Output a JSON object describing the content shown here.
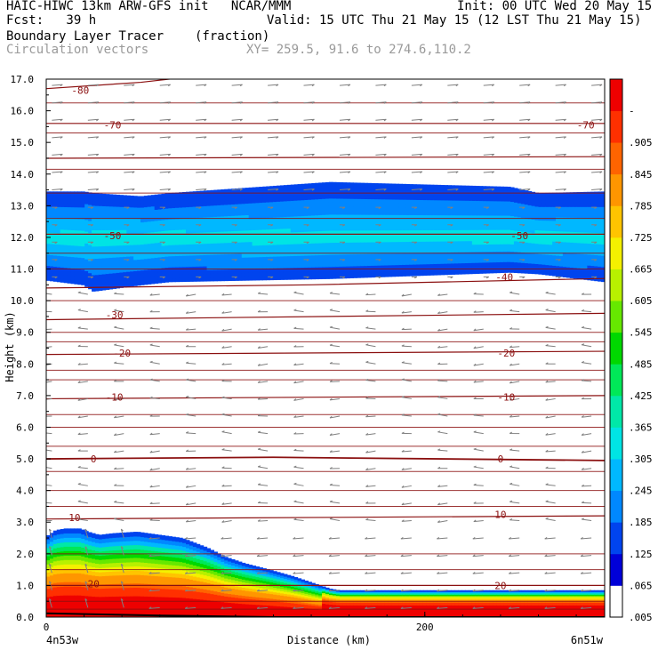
{
  "header": {
    "left_line1": "HAIC-HIWC 13km ARW-GFS init   NCAR/MMM",
    "left_line2": "Fcst:   39 h",
    "field_name": "Boundary Layer Tracer",
    "field_units": "(fraction)",
    "overlay_name": "Circulation vectors",
    "xy_text": "XY= 259.5, 91.6 to 274.6,110.2",
    "init_text": "Init: 00 UTC Wed 20 May 15",
    "valid_text": "Valid: 15 UTC Thu 21 May 15 (12 LST Thu 21 May 15)"
  },
  "chart_data": {
    "type": "heatmap",
    "title": "Boundary Layer Tracer",
    "xlabel": "Distance (km)",
    "ylabel": "Height (km)",
    "xlim": [
      0,
      295
    ],
    "ylim": [
      0,
      17
    ],
    "x_ticks": [
      0,
      200
    ],
    "x_tick_labels": [
      "0",
      "200"
    ],
    "y_ticks": [
      0,
      1,
      2,
      3,
      4,
      5,
      6,
      7,
      8,
      9,
      10,
      11,
      12,
      13,
      14,
      15,
      16,
      17
    ],
    "y_tick_labels": [
      "0.0",
      "1.0",
      "2.0",
      "3.0",
      "4.0",
      "5.0",
      "6.0",
      "7.0",
      "8.0",
      "9.0",
      "10.0",
      "11.0",
      "12.0",
      "13.0",
      "14.0",
      "15.0",
      "16.0",
      "17.0"
    ],
    "endpoint_labels": {
      "left": "4n53w",
      "right": "6n51w"
    },
    "colorbar": {
      "labels": [
        ".905",
        ".845",
        ".785",
        ".725",
        ".665",
        ".605",
        ".545",
        ".485",
        ".425",
        ".365",
        ".305",
        ".245",
        ".185",
        ".125",
        ".065",
        ".005"
      ],
      "top_label": "-",
      "colors": [
        "#ffffff",
        "#0000d8",
        "#0044ee",
        "#0088ff",
        "#00b8ff",
        "#00e4e4",
        "#00e8a8",
        "#00e858",
        "#00d800",
        "#66e800",
        "#b8f000",
        "#f4f000",
        "#ffc400",
        "#ff9600",
        "#ff6400",
        "#ff3000",
        "#ee0000"
      ]
    },
    "upper_layer": {
      "x": [
        0,
        20,
        25,
        50,
        65,
        150,
        245,
        260,
        295
      ],
      "bottom_km": [
        10.65,
        10.5,
        10.3,
        10.5,
        10.6,
        10.7,
        10.9,
        10.85,
        10.6
      ],
      "top_km": [
        13.45,
        13.45,
        13.4,
        13.3,
        13.4,
        13.75,
        13.6,
        13.4,
        13.45
      ],
      "core_km": 12.0,
      "core_value": 0.245
    },
    "lower_layer": {
      "x": [
        0,
        5,
        10,
        18,
        22,
        28,
        35,
        48,
        60,
        72,
        85,
        95,
        105,
        118,
        130,
        140,
        150,
        155,
        295
      ],
      "top_km": [
        2.55,
        2.75,
        2.8,
        2.8,
        2.7,
        2.6,
        2.65,
        2.7,
        2.6,
        2.5,
        2.2,
        1.9,
        1.7,
        1.5,
        1.3,
        1.1,
        0.9,
        0.85,
        0.85
      ],
      "near_surface_value": 0.965
    },
    "temperature_contours": {
      "labels": [
        "-80",
        "-70",
        "-70",
        "-50",
        "-50",
        "-40",
        "-30",
        "-20",
        "-20",
        "-10",
        "-10",
        "0",
        "0",
        "10",
        "10",
        "20",
        "20"
      ],
      "levels": [
        -80,
        -70,
        -60,
        -50,
        -40,
        -30,
        -20,
        -10,
        0,
        10,
        20
      ],
      "line_color": "#8b1010"
    },
    "vectors": {
      "color": "#808080",
      "upper_flow": "west-to-east",
      "mid_flow": "east-to-west",
      "near_surface_flow": "east-to-west"
    }
  }
}
